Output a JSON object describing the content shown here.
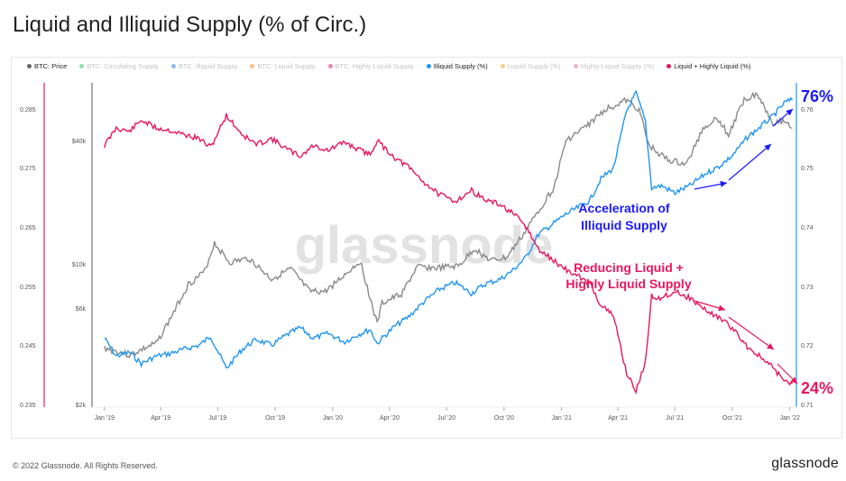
{
  "title": "Liquid and Illiquid Supply (% of Circ.)",
  "footer": {
    "copyright": "© 2022 Glassnode. All Rights Reserved.",
    "brand": "glassnode"
  },
  "watermark": "glassnode",
  "colors": {
    "price": "#8a8a8a",
    "illiquid": "#2196f3",
    "liquid": "#e8175d",
    "accent_blue": "#1a1aff"
  },
  "legend": [
    {
      "label": "BTC: Price",
      "color": "#666666",
      "active": true
    },
    {
      "label": "BTC: Circulating Supply",
      "color": "#2bbf6b",
      "active": false
    },
    {
      "label": "BTC: Illiquid Supply",
      "color": "#2b7be5",
      "active": false
    },
    {
      "label": "BTC: Liquid Supply",
      "color": "#f58a1f",
      "active": false
    },
    {
      "label": "BTC: Highly Liquid Supply",
      "color": "#e8175d",
      "active": false
    },
    {
      "label": "Illiquid Supply (%)",
      "color": "#2196f3",
      "active": true
    },
    {
      "label": "Liquid Supply (%)",
      "color": "#f5a623",
      "active": false
    },
    {
      "label": "Highly Liquid Supply (%)",
      "color": "#e46aa0",
      "active": false
    },
    {
      "label": "Liquid + Highly Liquid (%)",
      "color": "#e8175d",
      "active": true
    }
  ],
  "annotations": {
    "illiquid_end": "76%",
    "liquid_end": "24%",
    "accel_line1": "Acceleration of",
    "accel_line2": "Illiquid Supply",
    "reduce_line1": "Reducing Liquid +",
    "reduce_line2": "Highly Liquid Supply"
  },
  "chart_data": {
    "type": "line",
    "x_ticks": [
      "Jan '19",
      "Apr '19",
      "Jul '19",
      "Oct '19",
      "Jan '20",
      "Apr '20",
      "Jul '20",
      "Oct '20",
      "Jan '21",
      "Apr '21",
      "Jul '21",
      "Oct '21",
      "Jan '22"
    ],
    "left_axis_ticks": [
      "0.285",
      "0.275",
      "0.265",
      "0.255",
      "0.245",
      "0.235"
    ],
    "price_axis_ticks": [
      "$40k",
      "$10k",
      "$6k",
      "$2k"
    ],
    "right_axis_ticks": [
      "0.76",
      "0.75",
      "0.74",
      "0.73",
      "0.72",
      "0.71"
    ],
    "left_ylim": [
      0.235,
      0.285
    ],
    "right_ylim": [
      0.71,
      0.76
    ],
    "series": [
      {
        "name": "Liquid + Highly Liquid (%)",
        "axis": "left",
        "x": [
          "2019-01-01",
          "2019-01-20",
          "2019-02-10",
          "2019-03-01",
          "2019-03-25",
          "2019-04-15",
          "2019-05-10",
          "2019-06-01",
          "2019-06-20",
          "2019-07-01",
          "2019-07-15",
          "2019-08-10",
          "2019-09-01",
          "2019-09-25",
          "2019-10-20",
          "2019-11-10",
          "2019-12-01",
          "2019-12-25",
          "2020-01-20",
          "2020-02-10",
          "2020-03-01",
          "2020-03-12",
          "2020-03-20",
          "2020-04-10",
          "2020-05-01",
          "2020-05-25",
          "2020-06-20",
          "2020-07-15",
          "2020-08-10",
          "2020-09-01",
          "2020-09-25",
          "2020-10-15",
          "2020-11-05",
          "2020-11-25",
          "2020-12-15",
          "2021-01-05",
          "2021-01-25",
          "2021-02-15",
          "2021-03-05",
          "2021-03-25",
          "2021-04-15",
          "2021-04-30",
          "2021-05-15",
          "2021-05-25",
          "2021-06-10",
          "2021-07-01",
          "2021-07-25",
          "2021-08-20",
          "2021-09-10",
          "2021-10-01",
          "2021-10-25",
          "2021-11-15",
          "2021-12-05",
          "2021-12-25",
          "2022-01-05"
        ],
        "y": [
          0.2788,
          0.2818,
          0.2812,
          0.2831,
          0.2818,
          0.2814,
          0.2806,
          0.28,
          0.2785,
          0.2809,
          0.2839,
          0.2806,
          0.279,
          0.28,
          0.2782,
          0.277,
          0.2788,
          0.278,
          0.2794,
          0.2782,
          0.2773,
          0.2797,
          0.2788,
          0.2767,
          0.2752,
          0.2727,
          0.2705,
          0.2694,
          0.2712,
          0.2696,
          0.2688,
          0.2673,
          0.2651,
          0.2612,
          0.2597,
          0.258,
          0.2568,
          0.2555,
          0.2518,
          0.25,
          0.2403,
          0.2373,
          0.2421,
          0.2533,
          0.253,
          0.2542,
          0.253,
          0.2509,
          0.2497,
          0.2479,
          0.2448,
          0.243,
          0.2412,
          0.2388,
          0.2385
        ]
      },
      {
        "name": "Illiquid Supply (%)",
        "axis": "right",
        "x": [
          "2019-01-01",
          "2019-01-20",
          "2019-02-10",
          "2019-03-01",
          "2019-03-25",
          "2019-04-15",
          "2019-05-10",
          "2019-06-01",
          "2019-06-20",
          "2019-07-01",
          "2019-07-15",
          "2019-08-10",
          "2019-09-01",
          "2019-09-25",
          "2019-10-20",
          "2019-11-10",
          "2019-12-01",
          "2019-12-25",
          "2020-01-20",
          "2020-02-10",
          "2020-03-01",
          "2020-03-12",
          "2020-03-20",
          "2020-04-10",
          "2020-05-01",
          "2020-05-25",
          "2020-06-20",
          "2020-07-15",
          "2020-08-10",
          "2020-09-01",
          "2020-09-25",
          "2020-10-15",
          "2020-11-05",
          "2020-11-25",
          "2020-12-15",
          "2021-01-05",
          "2021-01-25",
          "2021-02-15",
          "2021-03-05",
          "2021-03-25",
          "2021-04-15",
          "2021-04-30",
          "2021-05-15",
          "2021-05-25",
          "2021-06-10",
          "2021-07-01",
          "2021-07-25",
          "2021-08-20",
          "2021-09-10",
          "2021-10-01",
          "2021-10-25",
          "2021-11-15",
          "2021-12-05",
          "2021-12-25",
          "2022-01-05"
        ],
        "y": [
          0.7212,
          0.7182,
          0.7188,
          0.7169,
          0.7182,
          0.7186,
          0.7194,
          0.72,
          0.7215,
          0.7191,
          0.7161,
          0.7194,
          0.721,
          0.72,
          0.7218,
          0.723,
          0.7212,
          0.722,
          0.7206,
          0.7218,
          0.7227,
          0.7203,
          0.7212,
          0.7233,
          0.7248,
          0.7273,
          0.7295,
          0.7306,
          0.7288,
          0.7304,
          0.7312,
          0.7327,
          0.7349,
          0.7388,
          0.7403,
          0.742,
          0.7432,
          0.7445,
          0.7482,
          0.75,
          0.7597,
          0.7627,
          0.7579,
          0.7467,
          0.747,
          0.7458,
          0.747,
          0.7491,
          0.7503,
          0.7521,
          0.7552,
          0.757,
          0.7588,
          0.7612,
          0.7615
        ]
      },
      {
        "name": "BTC: Price",
        "axis": "price",
        "x": [
          "2019-01-01",
          "2019-02-10",
          "2019-03-25",
          "2019-04-15",
          "2019-05-15",
          "2019-06-10",
          "2019-06-26",
          "2019-07-20",
          "2019-08-20",
          "2019-09-25",
          "2019-10-26",
          "2019-11-25",
          "2019-12-20",
          "2020-01-20",
          "2020-02-14",
          "2020-03-12",
          "2020-03-20",
          "2020-04-20",
          "2020-05-15",
          "2020-06-15",
          "2020-07-20",
          "2020-08-15",
          "2020-09-10",
          "2020-10-05",
          "2020-10-30",
          "2020-11-30",
          "2020-12-20",
          "2021-01-08",
          "2021-02-10",
          "2021-03-12",
          "2021-04-14",
          "2021-05-05",
          "2021-05-20",
          "2021-06-20",
          "2021-07-20",
          "2021-08-15",
          "2021-09-07",
          "2021-09-25",
          "2021-10-20",
          "2021-11-10",
          "2021-12-05",
          "2021-12-25",
          "2022-01-05"
        ],
        "y": [
          3800,
          3500,
          4000,
          5200,
          7800,
          9000,
          12500,
          10000,
          10500,
          8300,
          9300,
          7200,
          7200,
          8700,
          10200,
          5000,
          6300,
          7000,
          9500,
          9400,
          9600,
          11700,
          10200,
          10600,
          13500,
          19000,
          23500,
          40000,
          47000,
          57000,
          63000,
          57000,
          38000,
          32000,
          30500,
          46000,
          52000,
          42500,
          64000,
          68000,
          49000,
          50000,
          46000
        ]
      }
    ]
  }
}
